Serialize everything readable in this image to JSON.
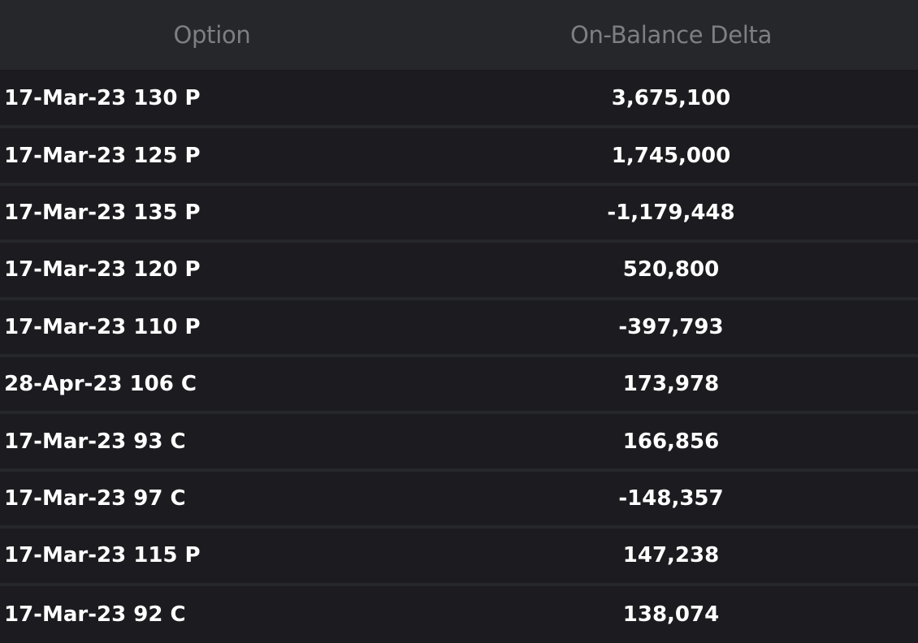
{
  "table": {
    "headers": {
      "option": "Option",
      "delta": "On-Balance Delta"
    },
    "rows": [
      {
        "option": "17-Mar-23 130 P",
        "delta": "3,675,100"
      },
      {
        "option": "17-Mar-23 125 P",
        "delta": "1,745,000"
      },
      {
        "option": "17-Mar-23 135 P",
        "delta": "-1,179,448"
      },
      {
        "option": "17-Mar-23 120 P",
        "delta": "520,800"
      },
      {
        "option": "17-Mar-23 110 P",
        "delta": "-397,793"
      },
      {
        "option": "28-Apr-23 106 C",
        "delta": "173,978"
      },
      {
        "option": "17-Mar-23 93 C",
        "delta": "166,856"
      },
      {
        "option": "17-Mar-23 97 C",
        "delta": "-148,357"
      },
      {
        "option": "17-Mar-23 115 P",
        "delta": "147,238"
      },
      {
        "option": "17-Mar-23 92 C",
        "delta": "138,074"
      }
    ]
  },
  "colors": {
    "background": "#1c1c20",
    "header_background": "#25272b",
    "header_text": "#7d7f83",
    "row_text": "#ffffff",
    "row_divider": "#26272b"
  }
}
